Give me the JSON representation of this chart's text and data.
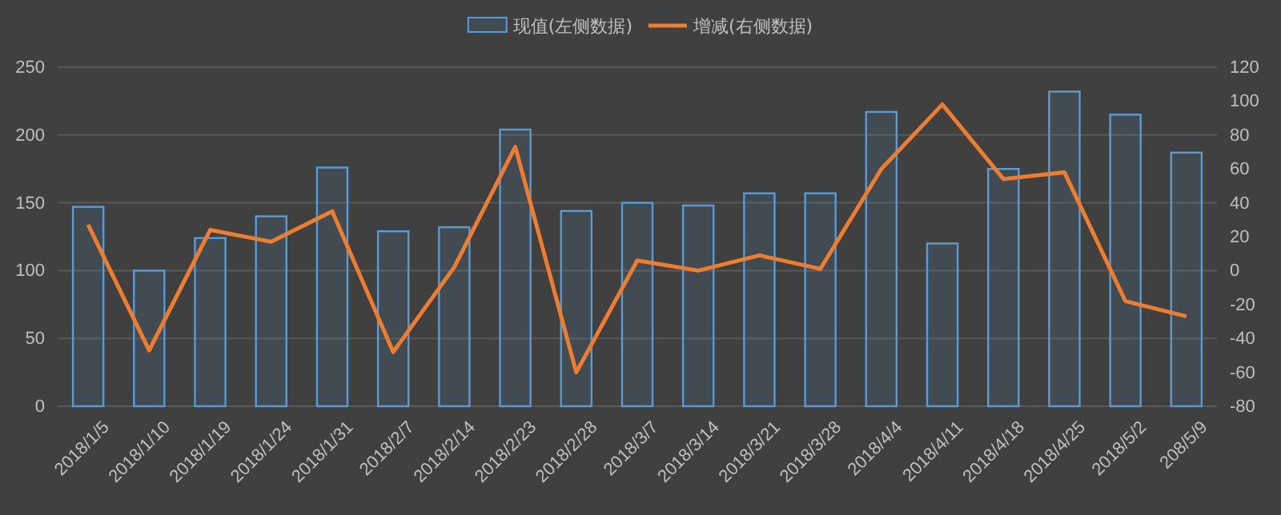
{
  "chart_data": {
    "type": "bar",
    "categories": [
      "2018/1/5",
      "2018/1/10",
      "2018/1/19",
      "2018/1/24",
      "2018/1/31",
      "2018/2/7",
      "2018/2/14",
      "2018/2/23",
      "2018/2/28",
      "2018/3/7",
      "2018/3/14",
      "2018/3/21",
      "2018/3/28",
      "2018/4/4",
      "2018/4/11",
      "2018/4/18",
      "2018/4/25",
      "2018/5/2",
      "208/5/9"
    ],
    "series": [
      {
        "name": "现值(左侧数据)",
        "color": "#5b9bd5",
        "values": [
          147,
          100,
          124,
          140,
          176,
          129,
          132,
          204,
          144,
          150,
          148,
          157,
          157,
          217,
          120,
          175,
          232,
          215,
          187
        ]
      },
      {
        "name": "增减(右侧数据)",
        "type": "line",
        "axis": "y2",
        "color": "#ed7d31",
        "values": [
          27,
          -47,
          24,
          17,
          35,
          -48,
          2,
          73,
          -60,
          6,
          0,
          9,
          1,
          60,
          98,
          54,
          58,
          -18,
          -27
        ]
      }
    ],
    "ylim": [
      0,
      250
    ],
    "yticks": [
      0,
      50,
      100,
      150,
      200,
      250
    ],
    "y2lim": [
      -80,
      120
    ],
    "y2ticks": [
      -80,
      -60,
      -40,
      -20,
      0,
      20,
      40,
      60,
      80,
      100,
      120
    ],
    "grid": "y",
    "legend": "top",
    "marker": "none",
    "line_style": "solid"
  }
}
